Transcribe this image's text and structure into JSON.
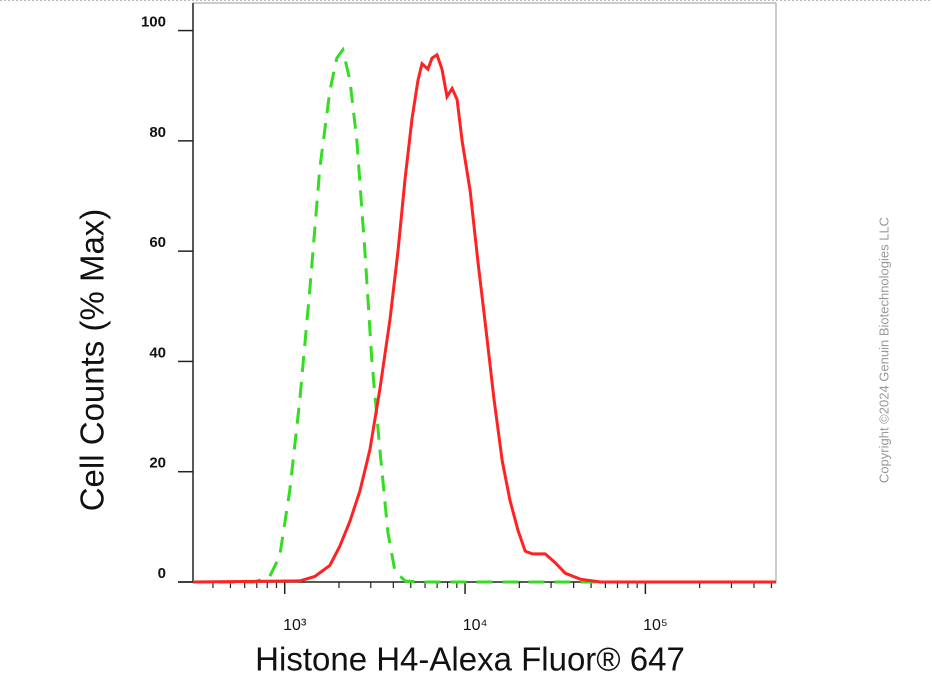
{
  "chart_data": {
    "type": "line",
    "log_x": true,
    "xlabel": "Histone H4-Alexa Fluor® 647",
    "ylabel": "Cell Counts (% Max)",
    "watermark": "Copyright ©2024 Genuin Biotechnologies LLC",
    "xlim": [
      310,
      530000
    ],
    "ylim": [
      0,
      105
    ],
    "xticks": [
      {
        "value": 1000,
        "label": "10³"
      },
      {
        "value": 10000,
        "label": "10⁴"
      },
      {
        "value": 100000,
        "label": "10⁵"
      }
    ],
    "xminorticks": [
      400,
      500,
      600,
      700,
      800,
      900,
      2000,
      3000,
      4000,
      5000,
      6000,
      7000,
      8000,
      9000,
      20000,
      30000,
      40000,
      50000,
      60000,
      70000,
      80000,
      90000,
      200000,
      300000,
      400000,
      500000
    ],
    "yticks": [
      0,
      20,
      40,
      60,
      80,
      100
    ],
    "series": [
      {
        "color": "#33dd22",
        "dashed": true,
        "x": [
          310,
          681,
          825,
          938,
          1066,
          1212,
          1377,
          1565,
          1778,
          1945,
          2100,
          2297,
          2512,
          2783,
          3043,
          3372,
          3735,
          4084,
          4642,
          5623,
          530000
        ],
        "values": [
          0,
          0,
          1,
          4.7,
          16.5,
          33,
          53,
          75,
          89,
          95,
          96.5,
          91,
          80,
          60,
          40,
          24,
          9,
          2,
          0.2,
          0,
          0
        ]
      },
      {
        "color": "#ff2222",
        "dashed": false,
        "x": [
          310,
          1212,
          1468,
          1778,
          2021,
          2297,
          2610,
          2966,
          3372,
          3831,
          4245,
          4642,
          5077,
          5483,
          5768,
          6226,
          6556,
          6985,
          7447,
          7943,
          8472,
          9036,
          9624,
          10660,
          11800,
          13090,
          14490,
          16070,
          17780,
          19680,
          21540,
          23570,
          27830,
          31620,
          35940,
          43550,
          56230,
          530000
        ],
        "values": [
          0,
          0.2,
          1,
          3,
          6.5,
          11,
          16.5,
          24,
          35,
          47.5,
          60,
          73,
          84,
          91,
          94,
          93,
          95,
          95.6,
          93,
          88,
          89.5,
          87.5,
          80,
          71,
          58,
          45.6,
          33,
          22,
          14.7,
          9.3,
          5.6,
          5.1,
          5.1,
          3.5,
          1.6,
          0.5,
          0,
          0
        ]
      }
    ]
  }
}
